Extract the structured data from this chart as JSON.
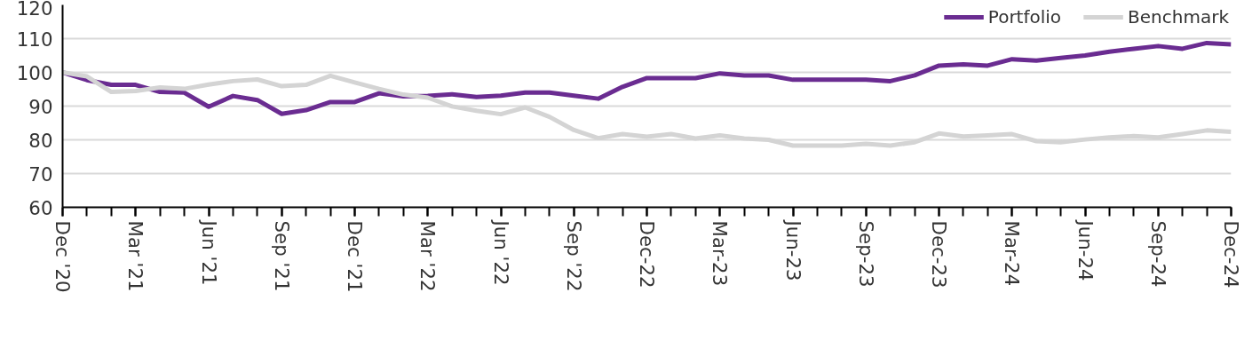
{
  "chart_data": {
    "type": "line",
    "categories": [
      "Dec '20",
      null,
      null,
      "Mar '21",
      null,
      null,
      "Jun '21",
      null,
      null,
      "Sep '21",
      null,
      null,
      "Dec '21",
      null,
      null,
      "Mar '22",
      null,
      null,
      "Jun '22",
      null,
      null,
      "Sep '22",
      null,
      null,
      "Dec-22",
      null,
      null,
      "Mar-23",
      null,
      null,
      "Jun-23",
      null,
      null,
      "Sep-23",
      null,
      null,
      "Dec-23",
      null,
      null,
      "Mar-24",
      null,
      null,
      "Jun-24",
      null,
      null,
      "Sep-24",
      null,
      null,
      "Dec-24"
    ],
    "series": [
      {
        "name": "Portfolio",
        "color": "#6a2c91",
        "values": [
          100,
          97.7,
          96.3,
          96.3,
          94.2,
          94,
          89.8,
          93,
          91.8,
          87.7,
          88.8,
          91.2,
          91.2,
          93.8,
          92.9,
          93,
          93.5,
          92.7,
          93.1,
          94,
          94,
          93.1,
          92.2,
          95.7,
          98.3,
          98.3,
          98.3,
          99.7,
          99.1,
          99.1,
          97.8,
          97.8,
          97.8,
          97.8,
          97.4,
          99.1,
          102,
          102.4,
          102,
          103.9,
          103.5,
          104.3,
          105,
          106.1,
          107,
          107.8,
          107,
          108.7,
          108.3
        ]
      },
      {
        "name": "Benchmark",
        "color": "#d4d4d4",
        "values": [
          100,
          98.8,
          94.2,
          94.5,
          95.5,
          95.1,
          96.4,
          97.4,
          97.9,
          95.9,
          96.3,
          99,
          97,
          95.1,
          93.4,
          92.5,
          89.9,
          88.6,
          87.6,
          89.6,
          86.8,
          82.9,
          80.5,
          81.7,
          80.9,
          81.7,
          80.4,
          81.3,
          80.4,
          80,
          78.3,
          78.3,
          78.3,
          78.8,
          78.3,
          79.3,
          81.9,
          81,
          81.3,
          81.7,
          79.6,
          79.3,
          80.1,
          80.7,
          81.1,
          80.7,
          81.7,
          82.8,
          82.4
        ]
      }
    ],
    "ylim": [
      60,
      120
    ],
    "yticks": [
      60,
      70,
      80,
      90,
      100,
      110,
      120
    ],
    "grid": "y",
    "legend": "top right",
    "line_style": "solid",
    "marker": "none"
  }
}
